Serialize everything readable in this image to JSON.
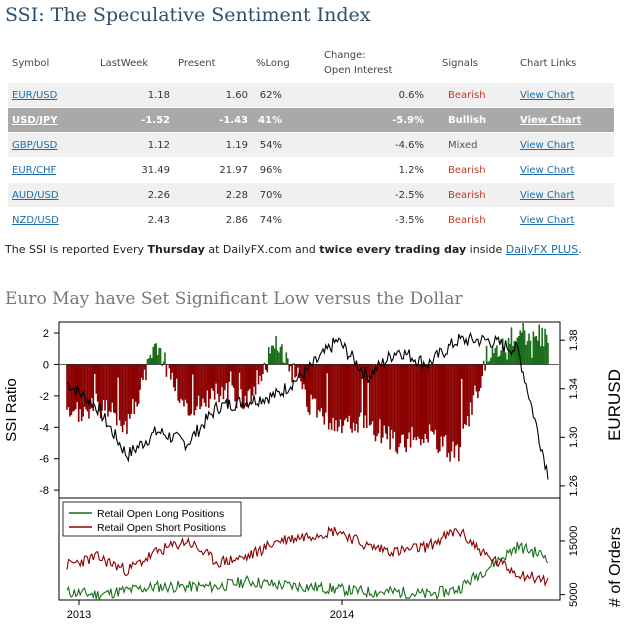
{
  "header": {
    "title": "SSI: The Speculative Sentiment Index"
  },
  "table": {
    "columns": [
      "Symbol",
      "LastWeek",
      "Present",
      "%Long",
      "Change:",
      "Open Interest",
      "Signals",
      "Chart Links"
    ],
    "rows": [
      {
        "symbol": "EUR/USD",
        "last_week": "1.18",
        "present": "1.60",
        "pct_long": "62%",
        "change": "0.6%",
        "signal": "Bearish",
        "link": "View Chart"
      },
      {
        "symbol": "USD/JPY",
        "last_week": "-1.52",
        "present": "-1.43",
        "pct_long": "41%",
        "change": "-5.9%",
        "signal": "Bullish",
        "link": "View Chart"
      },
      {
        "symbol": "GBP/USD",
        "last_week": "1.12",
        "present": "1.19",
        "pct_long": "54%",
        "change": "-4.6%",
        "signal": "Mixed",
        "link": "View Chart"
      },
      {
        "symbol": "EUR/CHF",
        "last_week": "31.49",
        "present": "21.97",
        "pct_long": "96%",
        "change": "1.2%",
        "signal": "Bearish",
        "link": "View Chart"
      },
      {
        "symbol": "AUD/USD",
        "last_week": "2.26",
        "present": "2.28",
        "pct_long": "70%",
        "change": "-2.5%",
        "signal": "Bearish",
        "link": "View Chart"
      },
      {
        "symbol": "NZD/USD",
        "last_week": "2.43",
        "present": "2.86",
        "pct_long": "74%",
        "change": "-3.5%",
        "signal": "Bearish",
        "link": "View Chart"
      }
    ]
  },
  "note": {
    "t1": "The SSI is reported Every ",
    "b1": "Thursday",
    "t2": " at DailyFX.com and ",
    "b2": "twice every trading day",
    "t3": " inside ",
    "link": "DailyFX PLUS",
    "t4": "."
  },
  "subtitle": "Euro May have Set Significant Low versus the Dollar",
  "colors": {
    "long": "#1a6e1a",
    "short": "#8b0000",
    "price": "#000000",
    "bearish": "#c0392b",
    "bullish": "#2a86c8"
  },
  "chart_data": [
    {
      "type": "bar",
      "panel": "top",
      "ylabel": "SSI Ratio",
      "ylabel_right": "EURUSD",
      "ylim": [
        -8.5,
        2.7
      ],
      "yticks": [
        "2",
        "0",
        "-2",
        "-4",
        "-6",
        "-8"
      ],
      "yticks_right": [
        "1.38",
        "1.34",
        "1.30",
        "1.26"
      ],
      "ylim_right": [
        1.25,
        1.395
      ],
      "series": [
        {
          "name": "SSI Ratio",
          "x": [
            "2013-01",
            "2013-02",
            "2013-03",
            "2013-04",
            "2013-05",
            "2013-06",
            "2013-07",
            "2013-08",
            "2013-09",
            "2013-10",
            "2013-11",
            "2013-12",
            "2014-01",
            "2014-02",
            "2014-03",
            "2014-04",
            "2014-05"
          ],
          "values": [
            -3.5,
            -2.6,
            -3.8,
            1.3,
            -3.0,
            -1.7,
            -2.2,
            1.4,
            -2.5,
            -4.0,
            -3.8,
            -5.0,
            -4.5,
            -5.8,
            0.7,
            2.0,
            1.8
          ]
        },
        {
          "name": "EURUSD",
          "x": [
            "2013-01",
            "2013-02",
            "2013-03",
            "2013-04",
            "2013-05",
            "2013-06",
            "2013-07",
            "2013-08",
            "2013-09",
            "2013-10",
            "2013-11",
            "2013-12",
            "2014-01",
            "2014-02",
            "2014-03",
            "2014-04",
            "2014-05"
          ],
          "values": [
            1.345,
            1.325,
            1.285,
            1.305,
            1.295,
            1.325,
            1.33,
            1.335,
            1.355,
            1.38,
            1.35,
            1.372,
            1.36,
            1.38,
            1.38,
            1.372,
            1.27
          ]
        }
      ]
    },
    {
      "type": "line",
      "panel": "bottom",
      "ylabel_right": "# of Orders",
      "ylim": [
        4000,
        23000
      ],
      "yticks_right": [
        "15000",
        "5000"
      ],
      "xticks": [
        "2013",
        "2014"
      ],
      "series": [
        {
          "name": "Retail Open Long Positions",
          "values": [
            5500,
            5000,
            5800,
            6500,
            6500,
            6500,
            7500,
            6800,
            6500,
            6000,
            5500,
            5500,
            5000,
            6000,
            10000,
            14000,
            12000
          ]
        },
        {
          "name": "Retail Open Short Positions",
          "values": [
            10500,
            12000,
            9500,
            13000,
            15000,
            11000,
            12000,
            15000,
            16000,
            17000,
            14000,
            13000,
            14000,
            17000,
            12000,
            9000,
            7500
          ]
        }
      ]
    }
  ]
}
